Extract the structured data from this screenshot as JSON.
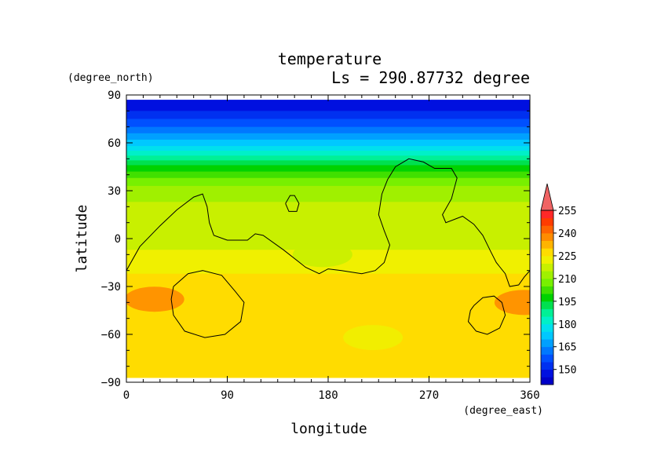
{
  "chart_data": {
    "type": "heatmap",
    "title": "temperature",
    "subtitle": "Ls = 290.87732 degree",
    "xlabel": "longitude",
    "ylabel": "latitude",
    "xunits": "(degree_east)",
    "yunits": "(degree_north)",
    "xlim": [
      0,
      360
    ],
    "ylim": [
      -90,
      90
    ],
    "xticks": [
      0,
      90,
      180,
      270,
      360
    ],
    "yticks": [
      -90,
      -60,
      -30,
      0,
      30,
      60,
      90
    ],
    "data_lat_range": [
      -87,
      87
    ],
    "field": {
      "lat_nodes": [
        87,
        80,
        75,
        70,
        65,
        60,
        55,
        50,
        45,
        40,
        35,
        30,
        20,
        10,
        0,
        -10,
        -20,
        -30,
        -40,
        -50,
        -60,
        -70,
        -80,
        -87
      ],
      "lat_values": [
        146,
        150,
        155,
        160,
        166,
        172,
        180,
        188,
        196,
        203,
        208,
        212,
        216,
        217,
        218,
        221,
        224,
        228,
        230,
        229,
        228,
        227,
        228,
        228
      ]
    },
    "colorbar": {
      "ticks": [
        150,
        165,
        180,
        195,
        210,
        225,
        240,
        255
      ],
      "levels": [
        {
          "min": 140,
          "max": 145,
          "color": "#0000c8"
        },
        {
          "min": 145,
          "max": 150,
          "color": "#0010e0"
        },
        {
          "min": 150,
          "max": 155,
          "color": "#0030f0"
        },
        {
          "min": 155,
          "max": 160,
          "color": "#0050ff"
        },
        {
          "min": 160,
          "max": 165,
          "color": "#0078ff"
        },
        {
          "min": 165,
          "max": 170,
          "color": "#00a0ff"
        },
        {
          "min": 170,
          "max": 175,
          "color": "#00c8ff"
        },
        {
          "min": 175,
          "max": 180,
          "color": "#00e0ee"
        },
        {
          "min": 180,
          "max": 185,
          "color": "#00f0c8"
        },
        {
          "min": 185,
          "max": 190,
          "color": "#00f096"
        },
        {
          "min": 190,
          "max": 195,
          "color": "#00e050"
        },
        {
          "min": 195,
          "max": 200,
          "color": "#00d200"
        },
        {
          "min": 200,
          "max": 205,
          "color": "#40e000"
        },
        {
          "min": 205,
          "max": 210,
          "color": "#78f000"
        },
        {
          "min": 210,
          "max": 215,
          "color": "#a0f000"
        },
        {
          "min": 215,
          "max": 220,
          "color": "#c8f000"
        },
        {
          "min": 220,
          "max": 225,
          "color": "#f0f000"
        },
        {
          "min": 225,
          "max": 230,
          "color": "#ffdc00"
        },
        {
          "min": 230,
          "max": 235,
          "color": "#ffb400"
        },
        {
          "min": 235,
          "max": 240,
          "color": "#ff8c00"
        },
        {
          "min": 240,
          "max": 245,
          "color": "#ff6400"
        },
        {
          "min": 245,
          "max": 250,
          "color": "#ff3c00"
        },
        {
          "min": 250,
          "max": 255,
          "color": "#ff2828"
        },
        {
          "min": 255,
          "max": 260,
          "color": "#f06464"
        }
      ]
    },
    "overlay": {
      "description_color": "#000000",
      "contours": [
        [
          [
            0,
            -20
          ],
          [
            12,
            -5
          ],
          [
            30,
            8
          ],
          [
            45,
            18
          ],
          [
            60,
            26
          ],
          [
            68,
            28
          ],
          [
            72,
            20
          ],
          [
            74,
            10
          ],
          [
            78,
            2
          ],
          [
            90,
            -1
          ],
          [
            108,
            -1
          ],
          [
            115,
            3
          ],
          [
            122,
            2
          ],
          [
            140,
            -7
          ],
          [
            160,
            -18
          ],
          [
            172,
            -22
          ],
          [
            180,
            -19
          ],
          [
            192,
            -20
          ],
          [
            210,
            -22
          ],
          [
            222,
            -20
          ],
          [
            230,
            -15
          ],
          [
            235,
            -4
          ],
          [
            230,
            5
          ],
          [
            225,
            15
          ],
          [
            228,
            28
          ],
          [
            233,
            37
          ],
          [
            240,
            45
          ],
          [
            252,
            50
          ],
          [
            265,
            48
          ],
          [
            275,
            44
          ],
          [
            290,
            44
          ],
          [
            295,
            38
          ],
          [
            290,
            25
          ],
          [
            282,
            15
          ],
          [
            285,
            10
          ],
          [
            300,
            14
          ],
          [
            310,
            9
          ],
          [
            318,
            2
          ],
          [
            325,
            -8
          ],
          [
            330,
            -15
          ],
          [
            338,
            -22
          ],
          [
            342,
            -30
          ],
          [
            350,
            -29
          ],
          [
            355,
            -24
          ],
          [
            360,
            -20
          ]
        ],
        [
          [
            142,
            22
          ],
          [
            146,
            27
          ],
          [
            150,
            27
          ],
          [
            154,
            22
          ],
          [
            152,
            17
          ],
          [
            145,
            17
          ],
          [
            142,
            22
          ]
        ],
        [
          [
            42,
            -30
          ],
          [
            55,
            -22
          ],
          [
            68,
            -20
          ],
          [
            85,
            -23
          ],
          [
            97,
            -33
          ],
          [
            105,
            -40
          ],
          [
            102,
            -52
          ],
          [
            88,
            -60
          ],
          [
            70,
            -62
          ],
          [
            52,
            -58
          ],
          [
            42,
            -48
          ],
          [
            40,
            -38
          ],
          [
            42,
            -30
          ]
        ],
        [
          [
            310,
            -42
          ],
          [
            318,
            -37
          ],
          [
            328,
            -36
          ],
          [
            335,
            -40
          ],
          [
            338,
            -48
          ],
          [
            333,
            -56
          ],
          [
            322,
            -60
          ],
          [
            312,
            -58
          ],
          [
            305,
            -52
          ],
          [
            307,
            -45
          ],
          [
            310,
            -42
          ]
        ]
      ]
    },
    "patches": [
      {
        "lon": 25,
        "lat": -38,
        "value": 236
      },
      {
        "lon": 355,
        "lat": -40,
        "value": 236
      },
      {
        "lon": 150,
        "lat": -65,
        "value": 228
      },
      {
        "lon": 250,
        "lat": -70,
        "value": 228
      },
      {
        "lon": 220,
        "lat": -62,
        "value": 222
      },
      {
        "lon": 175,
        "lat": -10,
        "value": 219
      }
    ]
  }
}
